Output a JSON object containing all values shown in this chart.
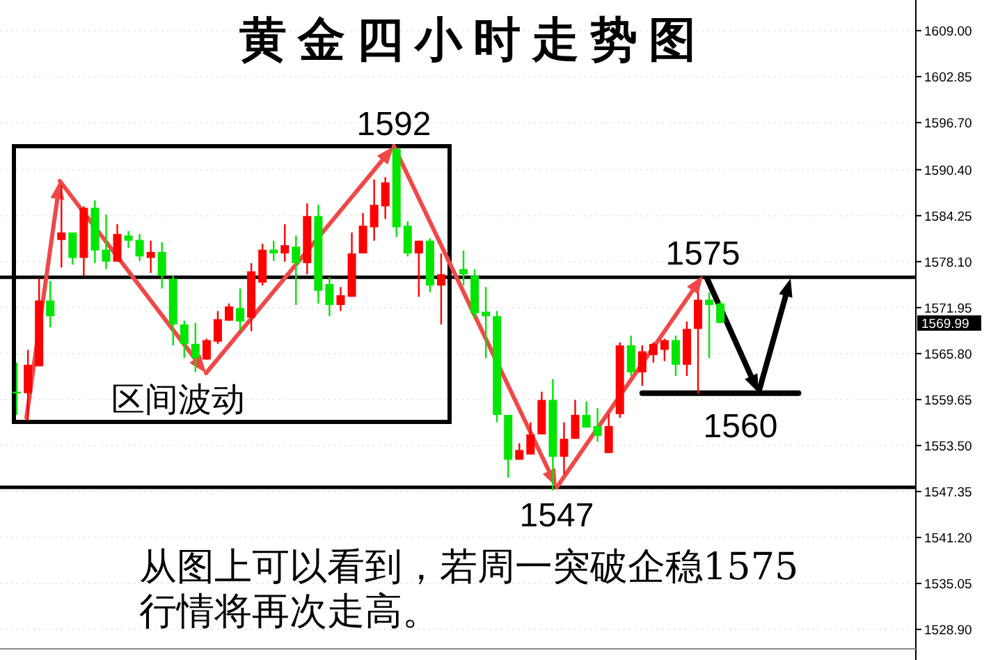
{
  "chart_data": {
    "type": "candlestick",
    "title": "黄金四小时走势图",
    "categories": [
      null,
      null,
      null,
      null,
      null,
      null,
      null,
      null,
      null,
      null,
      null,
      null,
      null,
      null,
      null,
      null,
      null,
      null,
      null,
      null,
      null,
      null,
      null,
      null,
      null,
      null,
      null,
      null,
      null,
      null,
      null,
      null,
      null,
      null,
      null,
      null,
      null,
      null,
      null,
      null,
      null,
      null,
      null,
      null,
      null,
      null,
      null,
      null,
      null,
      null,
      null,
      null,
      null,
      null,
      null,
      null,
      null,
      null,
      null,
      null,
      null,
      null,
      null,
      null,
      null,
      null,
      null,
      null,
      null,
      null,
      null,
      null,
      null,
      null,
      null,
      null,
      null,
      null,
      null,
      null,
      null,
      null
    ],
    "ohlc": [
      null,
      [
        1560.7,
        1564.6,
        1557.6,
        1560.5
      ],
      [
        1560.5,
        1566.3,
        1556.8,
        1564.3
      ],
      [
        1564.1,
        1575.8,
        1564.1,
        1572.9
      ],
      [
        1572.9,
        1575.5,
        1569.3,
        1570.8
      ],
      [
        1581.0,
        1588.3,
        1577.3,
        1582.0
      ],
      [
        1582.0,
        1582.0,
        1577.7,
        1578.6
      ],
      [
        1578.6,
        1585.5,
        1576.2,
        1585.3
      ],
      [
        1585.3,
        1586.3,
        1577.9,
        1579.6
      ],
      [
        1579.7,
        1584.4,
        1577.1,
        1578.1
      ],
      [
        1578.1,
        1583.1,
        1578.1,
        1581.8
      ],
      [
        1581.6,
        1582.2,
        1579.9,
        1580.9
      ],
      [
        1581.0,
        1581.8,
        1578.2,
        1578.8
      ],
      [
        1578.6,
        1580.9,
        1576.6,
        1579.4
      ],
      [
        1579.4,
        1580.7,
        1574.5,
        1576.2
      ],
      [
        1575.8,
        1576.2,
        1566.9,
        1569.7
      ],
      [
        1569.7,
        1570.2,
        1565.2,
        1567.1
      ],
      [
        1567.1,
        1569.9,
        1563.3,
        1565.2
      ],
      [
        1565.0,
        1567.8,
        1565.0,
        1567.6
      ],
      [
        1567.4,
        1571.5,
        1567.1,
        1570.4
      ],
      [
        1570.2,
        1572.5,
        1570.2,
        1572.1
      ],
      [
        1571.9,
        1574.5,
        1568.9,
        1570.1
      ],
      [
        1570.6,
        1577.9,
        1568.8,
        1576.8
      ],
      [
        1575.3,
        1580.5,
        1574.9,
        1579.7
      ],
      [
        1579.7,
        1580.9,
        1578.2,
        1579.2
      ],
      [
        1579.2,
        1583.1,
        1578.1,
        1580.3
      ],
      [
        1580.1,
        1581.6,
        1572.3,
        1577.9
      ],
      [
        1577.9,
        1585.9,
        1576.4,
        1584.2
      ],
      [
        1584.2,
        1585.7,
        1572.5,
        1574.2
      ],
      [
        1575.1,
        1576.0,
        1570.8,
        1572.3
      ],
      [
        1572.3,
        1574.7,
        1571.5,
        1573.6
      ],
      [
        1573.4,
        1582.0,
        1573.4,
        1579.2
      ],
      [
        1579.2,
        1584.6,
        1579.2,
        1582.9
      ],
      [
        1582.7,
        1589.1,
        1580.9,
        1585.7
      ],
      [
        1585.5,
        1589.4,
        1583.8,
        1588.7
      ],
      [
        1593.2,
        1593.2,
        1581.4,
        1582.7
      ],
      [
        1582.9,
        1583.5,
        1578.8,
        1579.2
      ],
      [
        1579.2,
        1580.9,
        1573.4,
        1580.9
      ],
      [
        1580.9,
        1581.2,
        1574.0,
        1574.9
      ],
      [
        1574.9,
        1579.2,
        1569.7,
        1576.4
      ],
      null,
      [
        1577.1,
        1579.6,
        1574.9,
        1576.4
      ],
      [
        1576.2,
        1577.1,
        1570.6,
        1571.2
      ],
      [
        1571.4,
        1574.7,
        1565.2,
        1570.8
      ],
      [
        1570.8,
        1571.5,
        1556.6,
        1557.6
      ],
      [
        1557.6,
        1557.6,
        1549.2,
        1551.6
      ],
      [
        1551.6,
        1553.8,
        1551.6,
        1552.9
      ],
      [
        1552.3,
        1556.6,
        1552.3,
        1555.0
      ],
      [
        1555.0,
        1560.7,
        1555.0,
        1559.6
      ],
      [
        1559.6,
        1562.4,
        1547.5,
        1552.0
      ],
      [
        1552.0,
        1556.6,
        1549.7,
        1554.4
      ],
      [
        1554.4,
        1559.6,
        1554.4,
        1557.6
      ],
      [
        1557.6,
        1559.4,
        1555.9,
        1555.9
      ],
      [
        1556.1,
        1558.5,
        1554.0,
        1554.8
      ],
      [
        1552.5,
        1557.7,
        1552.5,
        1556.1
      ],
      [
        1557.7,
        1567.3,
        1557.2,
        1566.9
      ],
      [
        1566.9,
        1568.2,
        1562.8,
        1563.3
      ],
      [
        1563.3,
        1566.9,
        1561.5,
        1566.1
      ],
      [
        1565.6,
        1567.3,
        1564.6,
        1567.1
      ],
      [
        1566.3,
        1567.8,
        1564.8,
        1567.6
      ],
      [
        1567.6,
        1568.2,
        1562.8,
        1564.3
      ],
      [
        1564.3,
        1570.1,
        1562.8,
        1569.1
      ],
      [
        1569.1,
        1574.0,
        1560.4,
        1573.0
      ],
      [
        1573.0,
        1574.0,
        1565.2,
        1572.3
      ],
      [
        1572.5,
        1572.7,
        1569.9,
        1569.9
      ],
      null,
      null,
      null,
      null,
      null,
      null,
      null,
      null,
      null,
      null,
      null,
      null,
      null,
      null,
      null,
      null,
      null
    ],
    "colors": [
      null,
      "#00e600",
      "#ff0000",
      "#ff0000",
      "#00e600",
      "#ff0000",
      "#00e600",
      "#ff0000",
      "#00e600",
      "#00e600",
      "#ff0000",
      "#00e600",
      "#00e600",
      "#ff0000",
      "#00e600",
      "#00e600",
      "#00e600",
      "#00e600",
      "#ff0000",
      "#ff0000",
      "#ff0000",
      "#00e600",
      "#ff0000",
      "#ff0000",
      "#00e600",
      "#ff0000",
      "#00e600",
      "#ff0000",
      "#00e600",
      "#00e600",
      "#ff0000",
      "#ff0000",
      "#ff0000",
      "#ff0000",
      "#ff0000",
      "#00e600",
      "#00e600",
      "#ff0000",
      "#00e600",
      "#ff0000",
      null,
      "#00e600",
      "#00e600",
      "#00e600",
      "#00e600",
      "#00e600",
      "#ff0000",
      "#ff0000",
      "#ff0000",
      "#00e600",
      "#ff0000",
      "#ff0000",
      "#00e600",
      "#00e600",
      "#ff0000",
      "#ff0000",
      "#00e600",
      "#ff0000",
      "#ff0000",
      "#ff0000",
      "#00e600",
      "#ff0000",
      "#ff0000",
      "#00e600",
      "#00e600",
      null,
      null,
      null,
      null,
      null,
      null,
      null,
      null,
      null,
      null,
      null,
      null,
      null,
      null,
      null,
      null,
      null
    ],
    "series": [
      {
        "type": "line",
        "color": "#000000",
        "values": [
          null,
          null,
          null,
          null,
          null,
          null,
          null,
          null,
          null,
          null,
          null,
          null,
          null,
          null,
          null,
          null,
          null,
          null,
          null,
          null,
          null,
          null,
          null,
          null,
          null,
          null,
          null,
          null,
          null,
          null,
          null,
          null,
          null,
          null,
          null,
          null,
          null,
          null,
          null,
          null,
          null,
          null,
          null,
          null,
          null,
          null,
          null,
          null,
          null,
          null,
          null,
          null,
          null,
          null,
          null,
          null,
          null,
          1560.5,
          1560.5,
          1560.5,
          1560.5,
          1560.5,
          1560.5,
          1560.5,
          1560.5,
          1560.5,
          1560.5,
          1560.5,
          1560.5,
          1560.5,
          1560.5,
          1560.5,
          null,
          null,
          null,
          null,
          null,
          null,
          null,
          null,
          null,
          null
        ]
      }
    ],
    "ylim": [
      1526.3,
      1613.1
    ],
    "yticks": [
      {
        "value": 1609,
        "label": "1609.00"
      },
      {
        "value": 1602.85,
        "label": "1602.85"
      },
      {
        "value": 1596.7,
        "label": "1596.70"
      },
      {
        "value": 1590.4,
        "label": "1590.40"
      },
      {
        "value": 1584.25,
        "label": "1584.25"
      },
      {
        "value": 1578.1,
        "label": "1578.10"
      },
      {
        "value": 1571.95,
        "label": "1571.95"
      },
      {
        "value": 1565.8,
        "label": "1565.80"
      },
      {
        "value": 1559.65,
        "label": "1559.65"
      },
      {
        "value": 1553.5,
        "label": "1553.50"
      },
      {
        "value": 1547.35,
        "label": "1547.35"
      },
      {
        "value": 1541.2,
        "label": "1541.20"
      },
      {
        "value": 1535.05,
        "label": "1535.05"
      },
      {
        "value": 1528.9,
        "label": "1528.90"
      }
    ],
    "ref_lines": [
      {
        "axis": "y",
        "value": 1576,
        "color": "#000000"
      },
      {
        "axis": "y",
        "value": 1547.9,
        "color": "#000000"
      }
    ],
    "annotations": [
      "1592",
      "1575",
      "1547",
      "1560",
      "1569.99",
      "区间波动",
      "从图上可以看到，若周一突破企稳1575行情将再次走高。"
    ],
    "grid": "y"
  }
}
